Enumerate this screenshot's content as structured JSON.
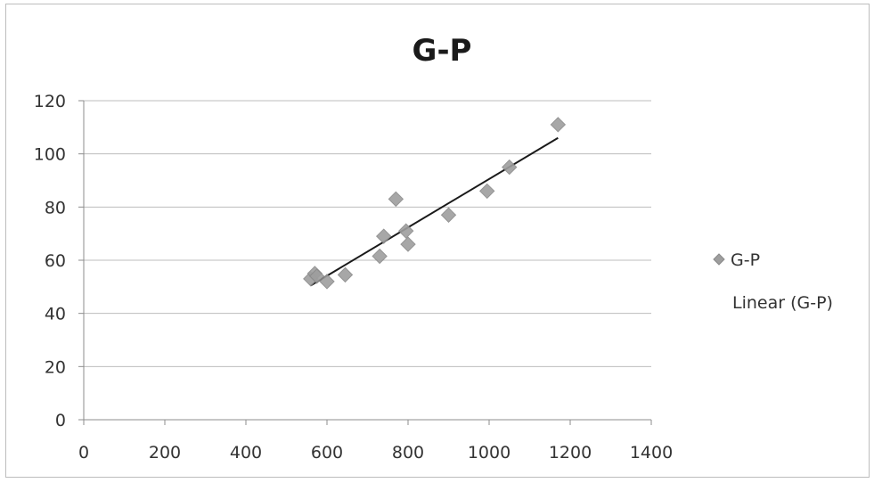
{
  "chart_data": {
    "type": "scatter",
    "title": "G-P",
    "xlabel": "",
    "ylabel": "",
    "xlim": [
      0,
      1400
    ],
    "ylim": [
      0,
      120
    ],
    "x_ticks": [
      0,
      200,
      400,
      600,
      800,
      1000,
      1200,
      1400
    ],
    "y_ticks": [
      0,
      20,
      40,
      60,
      80,
      100,
      120
    ],
    "grid": "horizontal",
    "legend_position": "right",
    "series": [
      {
        "name": "G-P",
        "marker": "diamond",
        "color": "#9e9e9e",
        "points": [
          {
            "x": 560,
            "y": 53
          },
          {
            "x": 570,
            "y": 55
          },
          {
            "x": 575,
            "y": 54
          },
          {
            "x": 600,
            "y": 52
          },
          {
            "x": 645,
            "y": 54.5
          },
          {
            "x": 730,
            "y": 61.5
          },
          {
            "x": 740,
            "y": 69
          },
          {
            "x": 770,
            "y": 83
          },
          {
            "x": 795,
            "y": 71
          },
          {
            "x": 800,
            "y": 66
          },
          {
            "x": 900,
            "y": 77
          },
          {
            "x": 995,
            "y": 86
          },
          {
            "x": 1050,
            "y": 95
          },
          {
            "x": 1170,
            "y": 111
          }
        ]
      }
    ],
    "trendline": {
      "name": "Linear (G-P)",
      "type": "linear",
      "color": "#1a1a1a",
      "x_range": [
        560,
        1170
      ],
      "y_at_range": [
        50.5,
        106
      ]
    }
  }
}
